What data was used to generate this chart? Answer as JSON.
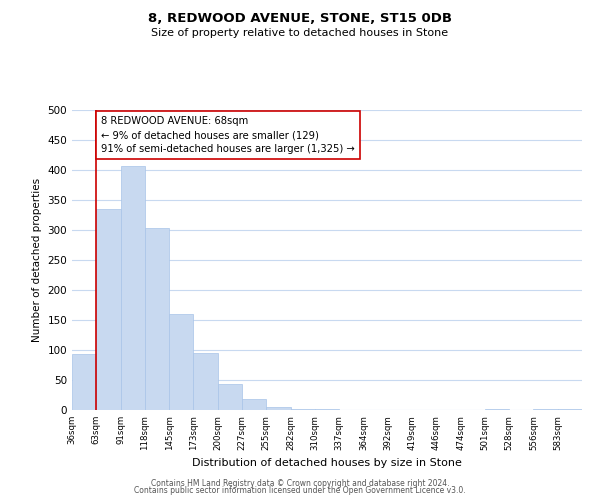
{
  "title": "8, REDWOOD AVENUE, STONE, ST15 0DB",
  "subtitle": "Size of property relative to detached houses in Stone",
  "xlabel": "Distribution of detached houses by size in Stone",
  "ylabel": "Number of detached properties",
  "bin_labels": [
    "36sqm",
    "63sqm",
    "91sqm",
    "118sqm",
    "145sqm",
    "173sqm",
    "200sqm",
    "227sqm",
    "255sqm",
    "282sqm",
    "310sqm",
    "337sqm",
    "364sqm",
    "392sqm",
    "419sqm",
    "446sqm",
    "474sqm",
    "501sqm",
    "528sqm",
    "556sqm",
    "583sqm"
  ],
  "bar_heights": [
    93,
    335,
    407,
    303,
    160,
    95,
    44,
    18,
    5,
    2,
    2,
    0,
    0,
    0,
    0,
    0,
    0,
    2,
    0,
    2,
    2
  ],
  "bar_color": "#c8d9f0",
  "bar_edge_color": "#a8c4e8",
  "grid_color": "#c8d9f0",
  "property_line_x": 1.0,
  "property_line_color": "#cc0000",
  "annotation_text": "8 REDWOOD AVENUE: 68sqm\n← 9% of detached houses are smaller (129)\n91% of semi-detached houses are larger (1,325) →",
  "annotation_box_edge_color": "#cc0000",
  "ylim": [
    0,
    500
  ],
  "yticks": [
    0,
    50,
    100,
    150,
    200,
    250,
    300,
    350,
    400,
    450,
    500
  ],
  "footer_line1": "Contains HM Land Registry data © Crown copyright and database right 2024.",
  "footer_line2": "Contains public sector information licensed under the Open Government Licence v3.0.",
  "bg_color": "#ffffff"
}
